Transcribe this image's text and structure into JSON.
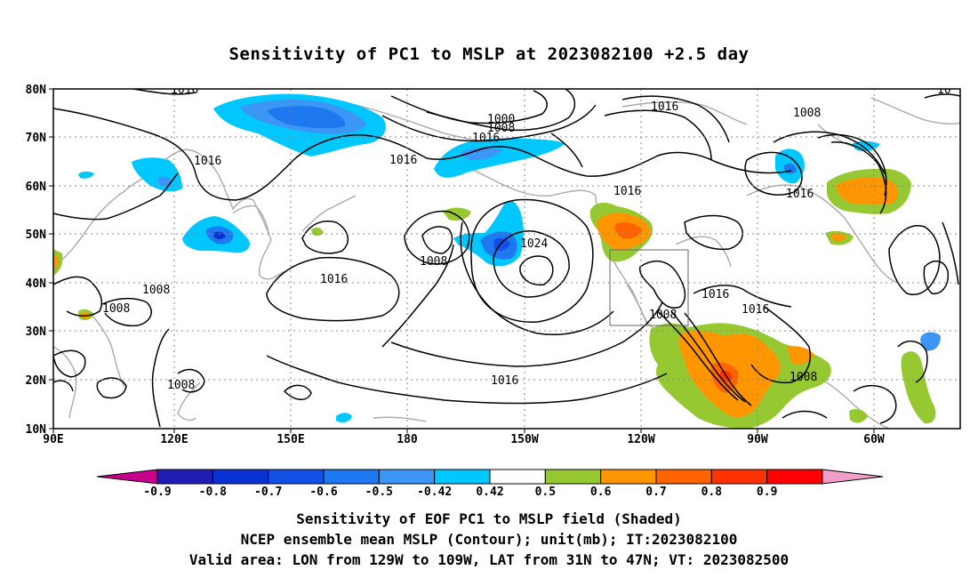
{
  "title": "Sensitivity of PC1 to MSLP at 2023082100 +2.5 day",
  "map": {
    "lon_labels": [
      "90E",
      "120E",
      "150E",
      "180",
      "150W",
      "120W",
      "90W",
      "60W"
    ],
    "lat_labels": [
      "80N",
      "70N",
      "60N",
      "50N",
      "40N",
      "30N",
      "20N",
      "10N"
    ],
    "contour_labels": [
      "1016",
      "1016",
      "1016",
      "1016",
      "1016",
      "1016",
      "1016",
      "1016",
      "1016",
      "1016",
      "1000",
      "1008",
      "1008",
      "1008",
      "1008",
      "1008",
      "1008",
      "1008",
      "1024",
      "1016",
      "10"
    ],
    "valid_box": {
      "lon_min": -129,
      "lon_max": -109,
      "lat_min": 31,
      "lat_max": 47
    }
  },
  "colorbar": {
    "labels": [
      "-0.9",
      "-0.8",
      "-0.7",
      "-0.6",
      "-0.5",
      "-0.42",
      "0.42",
      "0.5",
      "0.6",
      "0.7",
      "0.8",
      "0.9"
    ],
    "colors": [
      "#c8008c",
      "#1e1eb4",
      "#0a32d2",
      "#1450e6",
      "#1e78f0",
      "#3c96f5",
      "#00c8ff",
      "#ffffff",
      "#96c832",
      "#ff9600",
      "#ff6400",
      "#ff3200",
      "#ff0000",
      "#f0a0c8"
    ]
  },
  "captions": {
    "line1": "Sensitivity of EOF PC1 to MSLP field (Shaded)",
    "line2": "NCEP ensemble mean MSLP (Contour); unit(mb); IT:2023082100",
    "line3": "Valid area: LON from 129W to 109W, LAT from 31N to 47N; VT: 2023082500"
  }
}
